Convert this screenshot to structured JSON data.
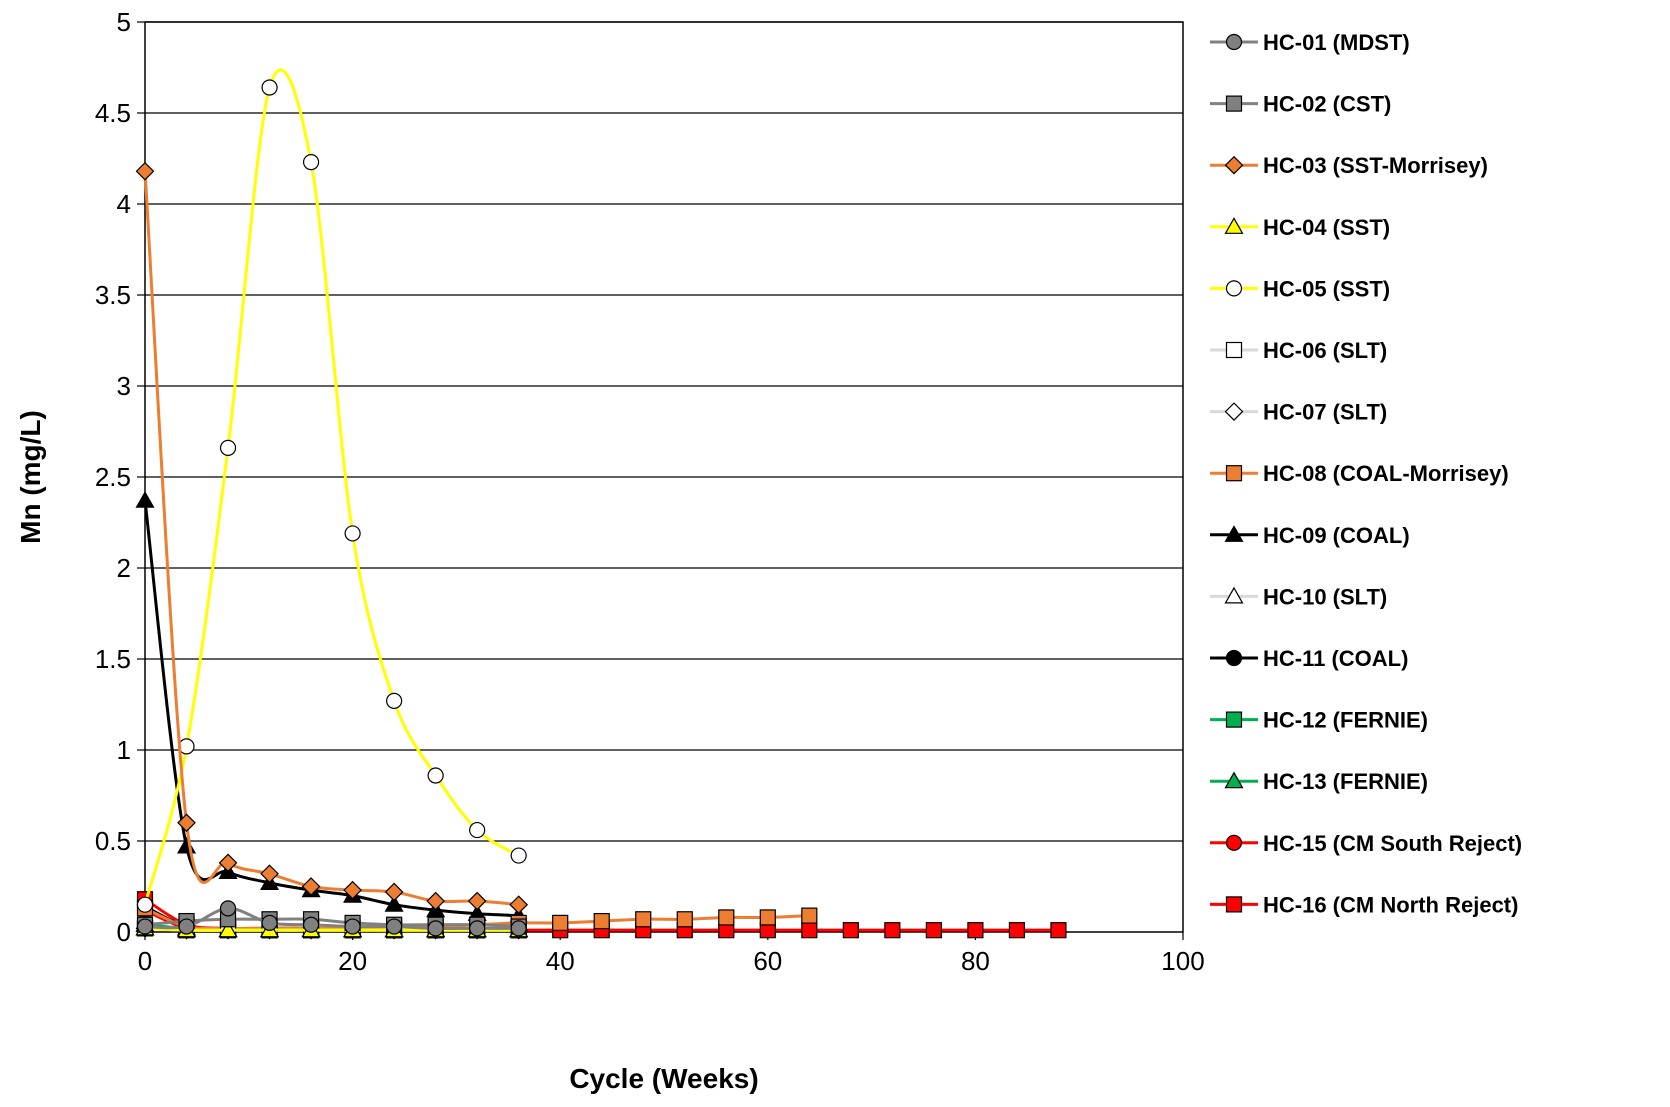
{
  "chart_data": {
    "type": "line",
    "title": "",
    "xlabel": "Cycle (Weeks)",
    "ylabel": "Mn (mg/L)",
    "xlim": [
      0,
      100
    ],
    "ylim": [
      0,
      5
    ],
    "x_ticks": [
      "0",
      "20",
      "40",
      "60",
      "80",
      "100"
    ],
    "y_ticks": [
      "0",
      "0.5",
      "1",
      "1.5",
      "2",
      "2.5",
      "3",
      "3.5",
      "4",
      "4.5",
      "5"
    ],
    "x_tick_values": [
      0,
      20,
      40,
      60,
      80,
      100
    ],
    "y_tick_values": [
      0,
      0.5,
      1,
      1.5,
      2,
      2.5,
      3,
      3.5,
      4,
      4.5,
      5
    ],
    "grid": "horizontal",
    "legend_position": "right",
    "series": [
      {
        "name": "HC-01  (MDST)",
        "color": "#808080",
        "marker": "circle",
        "fill": "#808080",
        "x": [
          0,
          4,
          8,
          12,
          16,
          20,
          24,
          28,
          32,
          36
        ],
        "y": [
          0.03,
          0.03,
          0.13,
          0.05,
          0.04,
          0.03,
          0.03,
          0.02,
          0.02,
          0.02
        ]
      },
      {
        "name": "HC-02  (CST)",
        "color": "#808080",
        "marker": "square",
        "fill": "#808080",
        "x": [
          0,
          4,
          8,
          12,
          16,
          20,
          24,
          28,
          32,
          36
        ],
        "y": [
          0.04,
          0.06,
          0.07,
          0.07,
          0.07,
          0.05,
          0.04,
          0.04,
          0.04,
          0.03
        ]
      },
      {
        "name": "HC-03  (SST-Morrisey)",
        "color": "#ED7D31",
        "marker": "diamond",
        "fill": "#ED7D31",
        "x": [
          0,
          4,
          8,
          12,
          16,
          20,
          24,
          28,
          32,
          36
        ],
        "y": [
          4.18,
          0.6,
          0.38,
          0.32,
          0.25,
          0.23,
          0.22,
          0.17,
          0.17,
          0.15
        ]
      },
      {
        "name": "HC-04  (SST)",
        "color": "#FFFF00",
        "marker": "triangle",
        "fill": "#FFFF00",
        "x": [
          0,
          4,
          8,
          12,
          16,
          20,
          24,
          28,
          32,
          36
        ],
        "y": [
          0.02,
          0.01,
          0.01,
          0.01,
          0.01,
          0.01,
          0.01,
          0.01,
          0.01,
          0.01
        ]
      },
      {
        "name": "HC-05  (SST)",
        "color": "#FFFF00",
        "marker": "circle",
        "fill": "#FFFFFF",
        "x": [
          0,
          4,
          8,
          12,
          16,
          20,
          24,
          28,
          32,
          36
        ],
        "y": [
          0.15,
          1.02,
          2.66,
          4.64,
          4.23,
          2.19,
          1.27,
          0.86,
          0.56,
          0.42
        ]
      },
      {
        "name": "HC-06  (SLT)",
        "color": "#D9D9D9",
        "marker": "square",
        "fill": "#FFFFFF",
        "x": [
          0,
          4,
          8,
          12,
          16,
          20,
          24,
          28,
          32,
          36
        ],
        "y": [
          0.02,
          0.01,
          0.01,
          0.01,
          0.01,
          0.01,
          0.01,
          0.01,
          0.01,
          0.01
        ]
      },
      {
        "name": "HC-07  (SLT)",
        "color": "#D9D9D9",
        "marker": "diamond",
        "fill": "#FFFFFF",
        "x": [
          0,
          4,
          8,
          12,
          16,
          20,
          24,
          28,
          32,
          36
        ],
        "y": [
          0.02,
          0.01,
          0.01,
          0.01,
          0.01,
          0.01,
          0.01,
          0.01,
          0.01,
          0.01
        ]
      },
      {
        "name": "HC-08  (COAL-Morrisey)",
        "color": "#ED7D31",
        "marker": "square",
        "fill": "#ED7D31",
        "x": [
          0,
          4,
          8,
          12,
          16,
          20,
          24,
          28,
          32,
          36,
          40,
          44,
          48,
          52,
          56,
          60,
          64
        ],
        "y": [
          0.13,
          0.03,
          0.02,
          0.02,
          0.02,
          0.02,
          0.03,
          0.03,
          0.04,
          0.05,
          0.05,
          0.06,
          0.07,
          0.07,
          0.08,
          0.08,
          0.09
        ]
      },
      {
        "name": "HC-09  (COAL)",
        "color": "#000000",
        "marker": "triangle",
        "fill": "#000000",
        "x": [
          0,
          4,
          8,
          12,
          16,
          20,
          24,
          28,
          32,
          36
        ],
        "y": [
          2.37,
          0.47,
          0.33,
          0.27,
          0.23,
          0.2,
          0.15,
          0.12,
          0.1,
          0.09
        ]
      },
      {
        "name": "HC-10  (SLT)",
        "color": "#D9D9D9",
        "marker": "triangle",
        "fill": "#FFFFFF",
        "x": [
          0,
          4,
          8,
          12,
          16,
          20,
          24,
          28,
          32,
          36
        ],
        "y": [
          0.02,
          0.01,
          0.01,
          0.01,
          0.01,
          0.01,
          0.01,
          0.01,
          0.01,
          0.01
        ]
      },
      {
        "name": "HC-11  (COAL)",
        "color": "#000000",
        "marker": "circle",
        "fill": "#000000",
        "x": [
          0,
          4,
          8,
          12,
          16,
          20,
          24,
          28,
          32,
          36
        ],
        "y": [
          0.14,
          0.03,
          0.02,
          0.02,
          0.02,
          0.01,
          0.01,
          0.01,
          0.01,
          0.01
        ]
      },
      {
        "name": "HC-12  (FERNIE)",
        "color": "#00B050",
        "marker": "square",
        "fill": "#00B050",
        "x": [
          0,
          4,
          8,
          12,
          16,
          20,
          24,
          28,
          32,
          36
        ],
        "y": [
          0.02,
          0.01,
          0.01,
          0.01,
          0.01,
          0.01,
          0.01,
          0.01,
          0.01,
          0.01
        ]
      },
      {
        "name": "HC-13  (FERNIE)",
        "color": "#00B050",
        "marker": "triangle",
        "fill": "#00B050",
        "x": [
          0,
          4,
          8,
          12,
          16,
          20,
          24,
          28,
          32,
          36
        ],
        "y": [
          0.04,
          0.02,
          0.01,
          0.01,
          0.01,
          0.01,
          0.01,
          0.01,
          0.01,
          0.01
        ]
      },
      {
        "name": "HC-15  (CM South Reject)",
        "color": "#FF0000",
        "marker": "circle",
        "fill": "#FF0000",
        "x": [
          0,
          4,
          8,
          12,
          16,
          20,
          24,
          28,
          32,
          36
        ],
        "y": [
          0.12,
          0.02,
          0.01,
          0.01,
          0.01,
          0.01,
          0.01,
          0.01,
          0.01,
          0.01
        ]
      },
      {
        "name": "HC-16  (CM North Reject)",
        "color": "#FF0000",
        "marker": "square",
        "fill": "#FF0000",
        "x": [
          0,
          4,
          8,
          12,
          16,
          20,
          24,
          28,
          32,
          36,
          40,
          44,
          48,
          52,
          56,
          60,
          64,
          68,
          72,
          76,
          80,
          84,
          88
        ],
        "y": [
          0.18,
          0.04,
          0.02,
          0.01,
          0.01,
          0.01,
          0.01,
          0.01,
          0.01,
          0.01,
          0.01,
          0.01,
          0.01,
          0.01,
          0.01,
          0.01,
          0.01,
          0.01,
          0.01,
          0.01,
          0.01,
          0.01,
          0.01
        ]
      }
    ]
  }
}
